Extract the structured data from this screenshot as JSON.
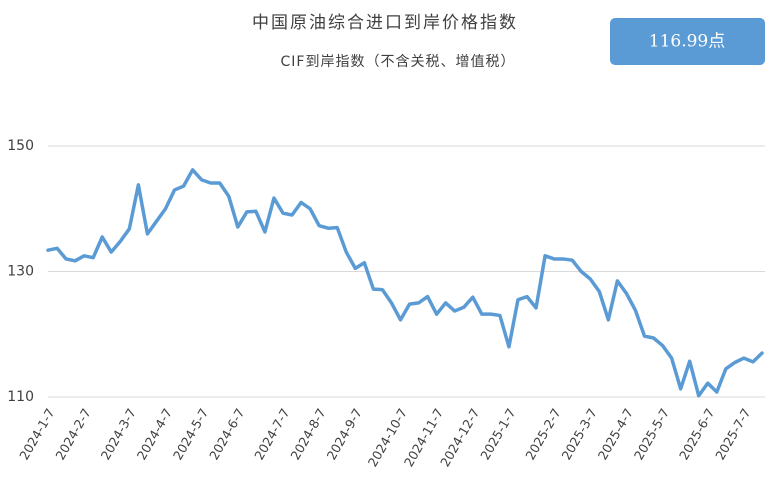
{
  "chart_data": {
    "type": "line",
    "title": "中国原油综合进口到岸价格指数",
    "subtitle": "CIF到岸指数（不含关税、增值税）",
    "badge": "116.99点",
    "categories": [
      "2024-1-7",
      null,
      null,
      null,
      "2024-2-7",
      null,
      null,
      null,
      null,
      "2024-3-7",
      null,
      null,
      null,
      "2024-4-7",
      null,
      null,
      null,
      "2024-5-7",
      null,
      null,
      null,
      "2024-6-7",
      null,
      null,
      null,
      null,
      "2024-7-7",
      null,
      null,
      null,
      "2024-8-7",
      null,
      null,
      null,
      "2024-9-7",
      null,
      null,
      null,
      null,
      "2024-10-7",
      null,
      null,
      null,
      "2024-11-7",
      null,
      null,
      null,
      "2024-12-7",
      null,
      null,
      null,
      "2025-1-7",
      null,
      null,
      null,
      null,
      "2025-2-7",
      null,
      null,
      null,
      "2025-3-7",
      null,
      null,
      null,
      "2025-4-7",
      null,
      null,
      null,
      "2025-5-7",
      null,
      null,
      null,
      null,
      "2025-6-7",
      null,
      null,
      null,
      "2025-7-7",
      null,
      null
    ],
    "series": [
      {
        "name": "CIF到岸指数",
        "color": "#5b9bd5",
        "values": [
          133.4,
          133.7,
          132,
          131.7,
          132.5,
          132.2,
          135.5,
          133.1,
          134.8,
          136.8,
          143.8,
          136,
          138,
          140,
          143,
          143.6,
          146.2,
          144.6,
          144.1,
          144.1,
          142,
          137.1,
          139.5,
          139.6,
          136.3,
          141.7,
          139.3,
          139,
          141,
          140,
          137.3,
          136.9,
          137,
          133.1,
          130.5,
          131.4,
          127.2,
          127.1,
          125,
          122.3,
          124.8,
          125,
          126,
          123.2,
          125,
          123.7,
          124.3,
          125.9,
          123.2,
          123.2,
          123,
          118,
          125.5,
          126,
          124.2,
          132.5,
          132,
          132,
          131.8,
          130,
          128.8,
          126.8,
          122.3,
          128.5,
          126.5,
          123.8,
          119.7,
          119.4,
          118.2,
          116.2,
          111.3,
          115.7,
          110.2,
          112.2,
          110.8,
          114.5,
          115.5,
          116.2,
          115.6,
          117
        ]
      }
    ],
    "ylim": [
      110,
      150
    ],
    "yticks": [
      110,
      130,
      150
    ],
    "grid": true
  }
}
